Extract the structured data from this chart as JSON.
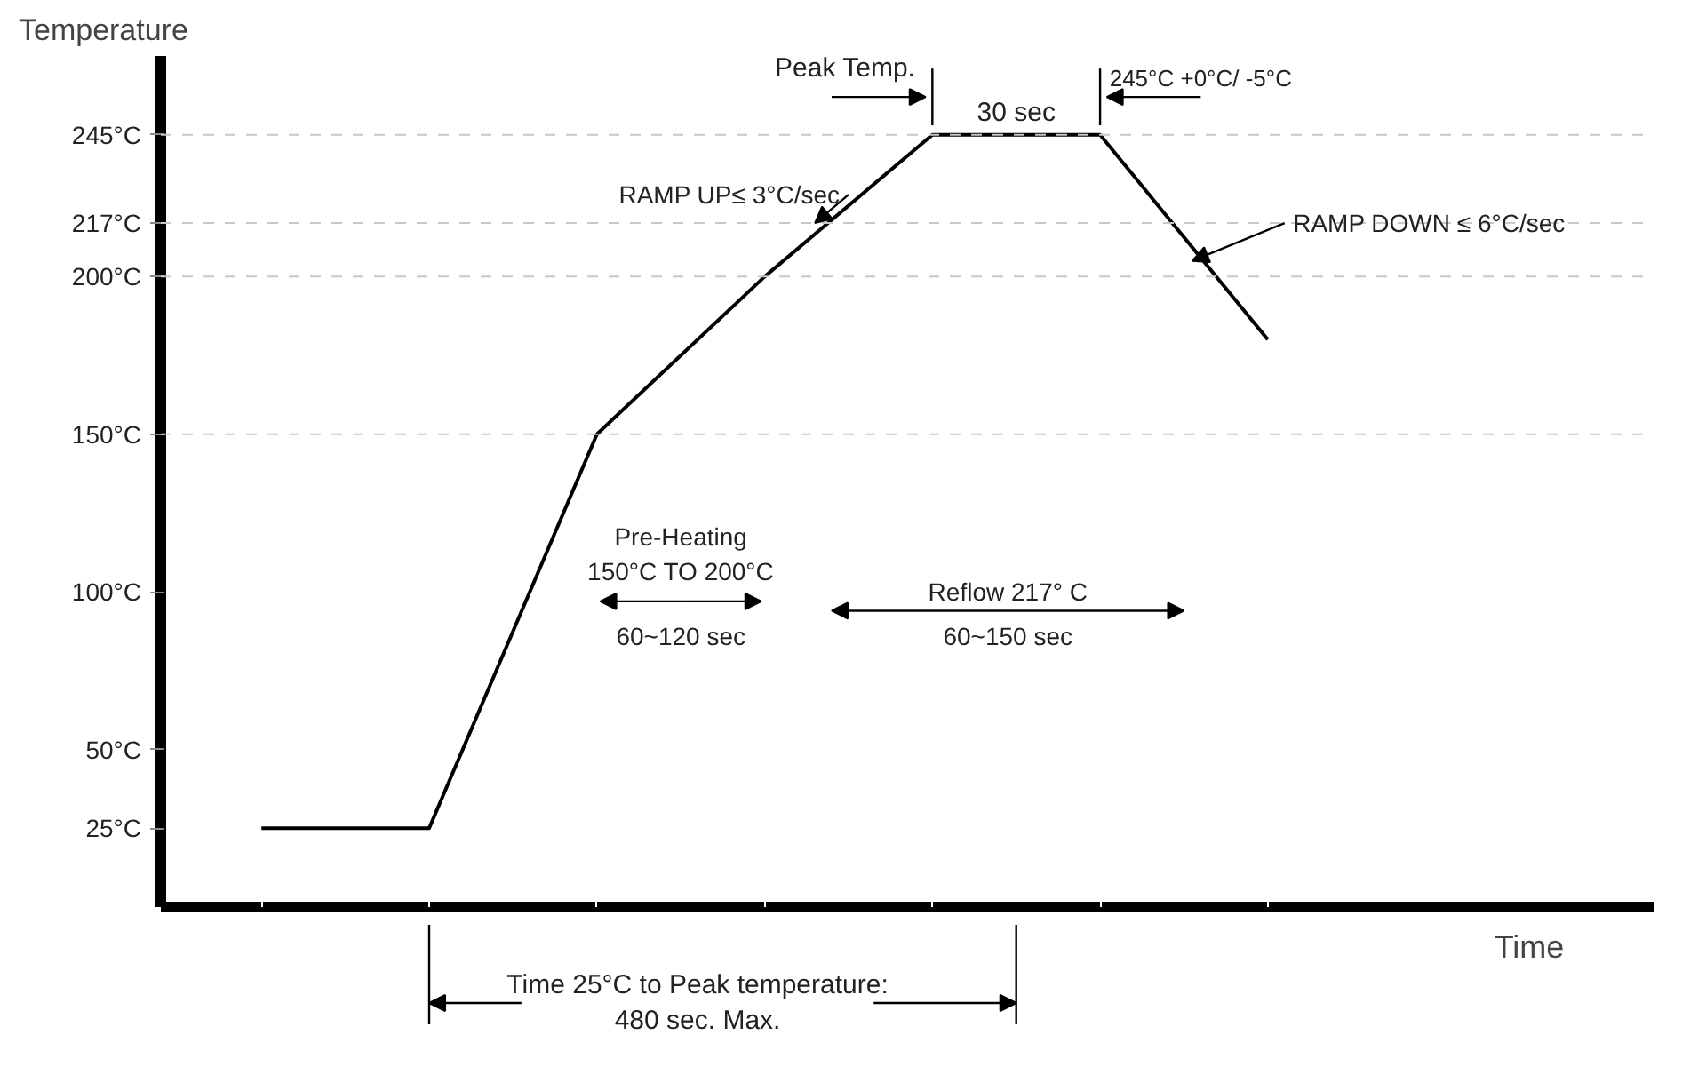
{
  "chart_data": {
    "type": "line",
    "xlabel": "Time",
    "ylabel": "Temperature",
    "categories": [
      null,
      null,
      null,
      null,
      null,
      null,
      null
    ],
    "values": [
      25,
      25,
      150,
      200,
      245,
      245,
      180
    ],
    "color": "#000000",
    "line_style": "solid",
    "marker": "none",
    "grid": false,
    "tick_labels": "y",
    "ylim": [
      0,
      270
    ],
    "yticks": [
      {
        "value": 25,
        "label": "25°C"
      },
      {
        "value": 50,
        "label": "50°C"
      },
      {
        "value": 100,
        "label": "100°C"
      },
      {
        "value": 150,
        "label": "150°C"
      },
      {
        "value": 200,
        "label": "200°C"
      },
      {
        "value": 217,
        "label": "217°C"
      },
      {
        "value": 245,
        "label": "245°C"
      }
    ],
    "ref_lines": [
      {
        "axis": "y",
        "value": 245,
        "color": "#c8c8c8",
        "line_style": "dashed"
      },
      {
        "axis": "y",
        "value": 217,
        "color": "#c8c8c8",
        "line_style": "dashed"
      },
      {
        "axis": "y",
        "value": 200,
        "color": "#c8c8c8",
        "line_style": "dashed"
      },
      {
        "axis": "y",
        "value": 150,
        "color": "#c8c8c8",
        "line_style": "dashed"
      }
    ],
    "annotations": [
      "Peak Temp.",
      "245°C +0°C/ -5°C",
      "30 sec",
      "RAMP UP≤ 3°C/sec",
      "RAMP DOWN  ≤ 6°C/sec",
      "Pre-Heating\n150°C TO 200°C",
      "60~120 sec",
      "Reflow 217° C",
      "60~150 sec",
      "Time 25°C to Peak temperature:\n480 sec. Max."
    ]
  }
}
